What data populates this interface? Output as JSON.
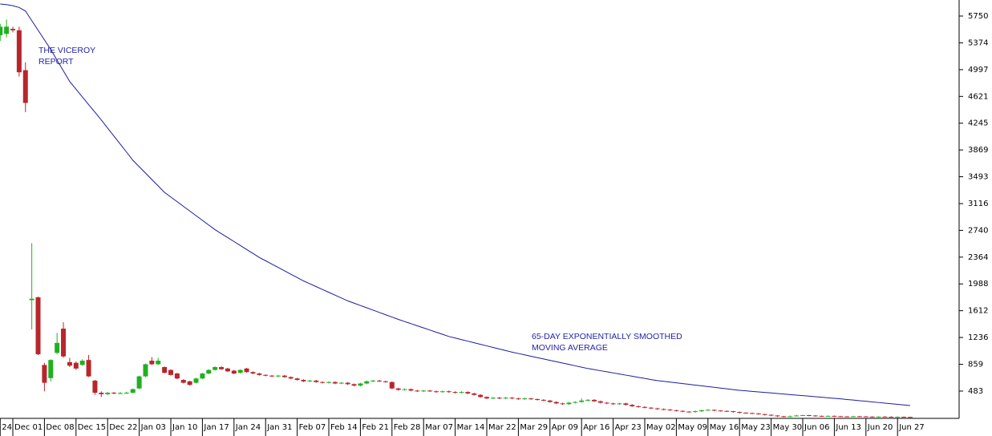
{
  "chart_data": {
    "type": "candlestick",
    "annotations": [
      [
        "THE VICEROY",
        "REPORT"
      ],
      [
        "65-DAY EXPONENTIALLY SMOOTHED",
        "MOVING AVERAGE"
      ]
    ],
    "categories": [
      "24",
      null,
      "Dec 01",
      null,
      null,
      null,
      null,
      "Dec 08",
      null,
      null,
      null,
      null,
      "Dec 15",
      null,
      null,
      null,
      null,
      "Dec 22",
      null,
      null,
      null,
      null,
      "Jan 03",
      null,
      null,
      null,
      null,
      "Jan 10",
      null,
      null,
      null,
      null,
      "Jan 17",
      null,
      null,
      null,
      null,
      "Jan 24",
      null,
      null,
      null,
      null,
      "Jan 31",
      null,
      null,
      null,
      null,
      "Feb 07",
      null,
      null,
      null,
      null,
      "Feb 14",
      null,
      null,
      null,
      null,
      "Feb 21",
      null,
      null,
      null,
      null,
      "Feb 28",
      null,
      null,
      null,
      null,
      "Mar 07",
      null,
      null,
      null,
      null,
      "Mar 14",
      null,
      null,
      null,
      null,
      "Mar 22",
      null,
      null,
      null,
      null,
      "Mar 29",
      null,
      null,
      null,
      null,
      "Apr 09",
      null,
      null,
      null,
      null,
      "Apr 16",
      null,
      null,
      null,
      null,
      "Apr 23",
      null,
      null,
      null,
      null,
      "May 02",
      null,
      null,
      null,
      null,
      "May 09",
      null,
      null,
      null,
      null,
      "May 16",
      null,
      null,
      null,
      null,
      "May 23",
      null,
      null,
      null,
      null,
      "May 30",
      null,
      null,
      null,
      null,
      "Jun 06",
      null,
      null,
      null,
      null,
      "Jun 13",
      null,
      null,
      null,
      null,
      "Jun 20",
      null,
      null,
      null,
      null,
      "Jun 27",
      null,
      null
    ],
    "ohlc": [
      [
        5480,
        5640,
        5400,
        5600
      ],
      [
        5500,
        5700,
        5450,
        5600
      ],
      [
        5570,
        5600,
        5520,
        5550
      ],
      [
        5550,
        5600,
        4900,
        4960
      ],
      [
        4990,
        5100,
        4400,
        4530
      ],
      [
        1760,
        2560,
        1350,
        1780
      ],
      [
        1800,
        1810,
        990,
        1000
      ],
      [
        850,
        880,
        480,
        600
      ],
      [
        665,
        930,
        620,
        920
      ],
      [
        1020,
        1300,
        1000,
        1160
      ],
      [
        1360,
        1450,
        950,
        970
      ],
      [
        890,
        950,
        820,
        840
      ],
      [
        880,
        900,
        780,
        800
      ],
      [
        850,
        930,
        840,
        910
      ],
      [
        920,
        990,
        680,
        690
      ],
      [
        630,
        640,
        430,
        460
      ],
      [
        460,
        480,
        400,
        440
      ],
      [
        440,
        470,
        430,
        460
      ],
      [
        460,
        470,
        440,
        450
      ],
      [
        450,
        470,
        440,
        455
      ],
      [
        455,
        475,
        445,
        460
      ],
      [
        460,
        520,
        450,
        510
      ],
      [
        520,
        700,
        510,
        690
      ],
      [
        690,
        870,
        680,
        860
      ],
      [
        910,
        960,
        850,
        860
      ],
      [
        860,
        950,
        850,
        910
      ],
      [
        820,
        830,
        730,
        740
      ],
      [
        780,
        790,
        700,
        710
      ],
      [
        730,
        740,
        650,
        660
      ],
      [
        640,
        650,
        590,
        600
      ],
      [
        620,
        630,
        560,
        570
      ],
      [
        600,
        670,
        590,
        660
      ],
      [
        660,
        740,
        650,
        730
      ],
      [
        730,
        790,
        720,
        780
      ],
      [
        780,
        830,
        770,
        820
      ],
      [
        820,
        830,
        780,
        790
      ],
      [
        800,
        810,
        750,
        760
      ],
      [
        770,
        780,
        720,
        730
      ],
      [
        740,
        790,
        730,
        780
      ],
      [
        800,
        810,
        740,
        750
      ],
      [
        750,
        760,
        720,
        730
      ],
      [
        730,
        740,
        700,
        710
      ],
      [
        710,
        720,
        690,
        700
      ],
      [
        700,
        710,
        680,
        690
      ],
      [
        690,
        710,
        680,
        700
      ],
      [
        700,
        710,
        670,
        680
      ],
      [
        680,
        690,
        650,
        660
      ],
      [
        660,
        670,
        630,
        640
      ],
      [
        640,
        650,
        610,
        620
      ],
      [
        620,
        640,
        610,
        630
      ],
      [
        630,
        640,
        600,
        610
      ],
      [
        610,
        620,
        590,
        600
      ],
      [
        600,
        620,
        590,
        610
      ],
      [
        610,
        620,
        580,
        590
      ],
      [
        590,
        610,
        580,
        600
      ],
      [
        600,
        610,
        570,
        580
      ],
      [
        580,
        590,
        550,
        560
      ],
      [
        560,
        600,
        550,
        590
      ],
      [
        590,
        630,
        580,
        620
      ],
      [
        620,
        640,
        610,
        630
      ],
      [
        630,
        640,
        610,
        620
      ],
      [
        620,
        630,
        600,
        610
      ],
      [
        610,
        620,
        510,
        520
      ],
      [
        520,
        530,
        490,
        500
      ],
      [
        500,
        520,
        490,
        510
      ],
      [
        510,
        520,
        480,
        490
      ],
      [
        490,
        500,
        470,
        480
      ],
      [
        480,
        500,
        470,
        490
      ],
      [
        490,
        500,
        470,
        480
      ],
      [
        480,
        490,
        460,
        470
      ],
      [
        470,
        490,
        460,
        480
      ],
      [
        480,
        490,
        460,
        470
      ],
      [
        470,
        480,
        450,
        460
      ],
      [
        460,
        480,
        450,
        470
      ],
      [
        470,
        480,
        440,
        450
      ],
      [
        450,
        460,
        420,
        430
      ],
      [
        430,
        440,
        390,
        400
      ],
      [
        400,
        410,
        370,
        380
      ],
      [
        380,
        400,
        370,
        390
      ],
      [
        390,
        400,
        370,
        380
      ],
      [
        380,
        400,
        370,
        390
      ],
      [
        390,
        400,
        370,
        380
      ],
      [
        380,
        390,
        360,
        370
      ],
      [
        370,
        390,
        360,
        380
      ],
      [
        380,
        390,
        360,
        370
      ],
      [
        370,
        380,
        350,
        360
      ],
      [
        360,
        370,
        340,
        350
      ],
      [
        350,
        360,
        320,
        330
      ],
      [
        330,
        340,
        300,
        310
      ],
      [
        310,
        320,
        290,
        300
      ],
      [
        300,
        330,
        290,
        320
      ],
      [
        320,
        340,
        310,
        330
      ],
      [
        330,
        380,
        320,
        350
      ],
      [
        350,
        370,
        340,
        360
      ],
      [
        360,
        370,
        330,
        340
      ],
      [
        340,
        350,
        310,
        320
      ],
      [
        320,
        330,
        300,
        310
      ],
      [
        310,
        320,
        290,
        300
      ],
      [
        300,
        320,
        290,
        310
      ],
      [
        310,
        320,
        280,
        290
      ],
      [
        290,
        300,
        260,
        270
      ],
      [
        270,
        280,
        250,
        260
      ],
      [
        260,
        270,
        240,
        250
      ],
      [
        250,
        260,
        230,
        240
      ],
      [
        240,
        250,
        220,
        230
      ],
      [
        230,
        240,
        215,
        225
      ],
      [
        225,
        230,
        205,
        215
      ],
      [
        215,
        220,
        195,
        205
      ],
      [
        205,
        210,
        185,
        195
      ],
      [
        195,
        200,
        180,
        190
      ],
      [
        190,
        210,
        180,
        200
      ],
      [
        200,
        220,
        190,
        215
      ],
      [
        215,
        230,
        210,
        220
      ],
      [
        220,
        225,
        200,
        210
      ],
      [
        210,
        215,
        195,
        205
      ],
      [
        205,
        210,
        190,
        200
      ],
      [
        200,
        205,
        180,
        190
      ],
      [
        190,
        195,
        170,
        180
      ],
      [
        180,
        185,
        165,
        175
      ],
      [
        175,
        180,
        160,
        170
      ],
      [
        170,
        175,
        150,
        160
      ],
      [
        160,
        165,
        140,
        150
      ],
      [
        150,
        155,
        130,
        140
      ],
      [
        140,
        145,
        120,
        130
      ],
      [
        130,
        135,
        115,
        125
      ],
      [
        125,
        140,
        120,
        130
      ],
      [
        130,
        150,
        125,
        140
      ],
      [
        140,
        150,
        135,
        145
      ],
      [
        145,
        150,
        130,
        140
      ],
      [
        140,
        145,
        125,
        135
      ],
      [
        135,
        140,
        120,
        130
      ],
      [
        130,
        140,
        125,
        135
      ],
      [
        135,
        140,
        120,
        130
      ],
      [
        130,
        135,
        120,
        128
      ],
      [
        128,
        132,
        118,
        125
      ],
      [
        125,
        135,
        120,
        130
      ],
      [
        130,
        135,
        120,
        128
      ],
      [
        128,
        132,
        118,
        125
      ],
      [
        125,
        130,
        115,
        122
      ],
      [
        122,
        130,
        118,
        125
      ],
      [
        125,
        130,
        118,
        123
      ],
      [
        123,
        128,
        112,
        120
      ],
      [
        120,
        128,
        115,
        122
      ],
      [
        122,
        126,
        114,
        120
      ],
      [
        120,
        124,
        112,
        118
      ]
    ],
    "ema_values": [
      5919,
      5910,
      5895,
      5870,
      5820,
      5685,
      5550,
      5415,
      5280,
      5130,
      4980,
      4830,
      4722,
      4614,
      4506,
      4398,
      4290,
      4177,
      4064,
      3951,
      3838,
      3724,
      3634,
      3544,
      3454,
      3364,
      3274,
      3208,
      3143,
      3077,
      3012,
      2946,
      2881,
      2815,
      2750,
      2694,
      2639,
      2583,
      2527,
      2471,
      2416,
      2360,
      2313,
      2266,
      2219,
      2172,
      2124,
      2077,
      2030,
      1990,
      1950,
      1910,
      1870,
      1830,
      1790,
      1750,
      1718,
      1685,
      1653,
      1620,
      1588,
      1555,
      1523,
      1490,
      1460,
      1430,
      1400,
      1370,
      1340,
      1310,
      1280,
      1250,
      1228,
      1206,
      1184,
      1162,
      1140,
      1118,
      1096,
      1074,
      1052,
      1030,
      1011,
      992,
      972,
      953,
      934,
      915,
      896,
      877,
      858,
      838,
      819,
      800,
      785,
      769,
      754,
      738,
      723,
      707,
      692,
      676,
      661,
      645,
      630,
      620,
      609,
      599,
      588,
      578,
      567,
      557,
      546,
      536,
      525,
      515,
      504,
      494,
      487,
      479,
      472,
      464,
      457,
      449,
      442,
      434,
      427,
      419,
      412,
      404,
      397,
      389,
      382,
      374,
      365,
      357,
      348,
      340,
      331,
      323,
      314,
      306,
      297,
      289,
      280
    ],
    "up_color": "#20b020",
    "down_color": "#b8262c",
    "line_color": "#1c1ca0",
    "ylim": [
      100,
      5975
    ],
    "yticks": [
      483,
      859,
      1236,
      1612,
      1988,
      2364,
      2740,
      3116,
      3493,
      3869,
      4245,
      4621,
      4997,
      5374,
      5750
    ]
  }
}
